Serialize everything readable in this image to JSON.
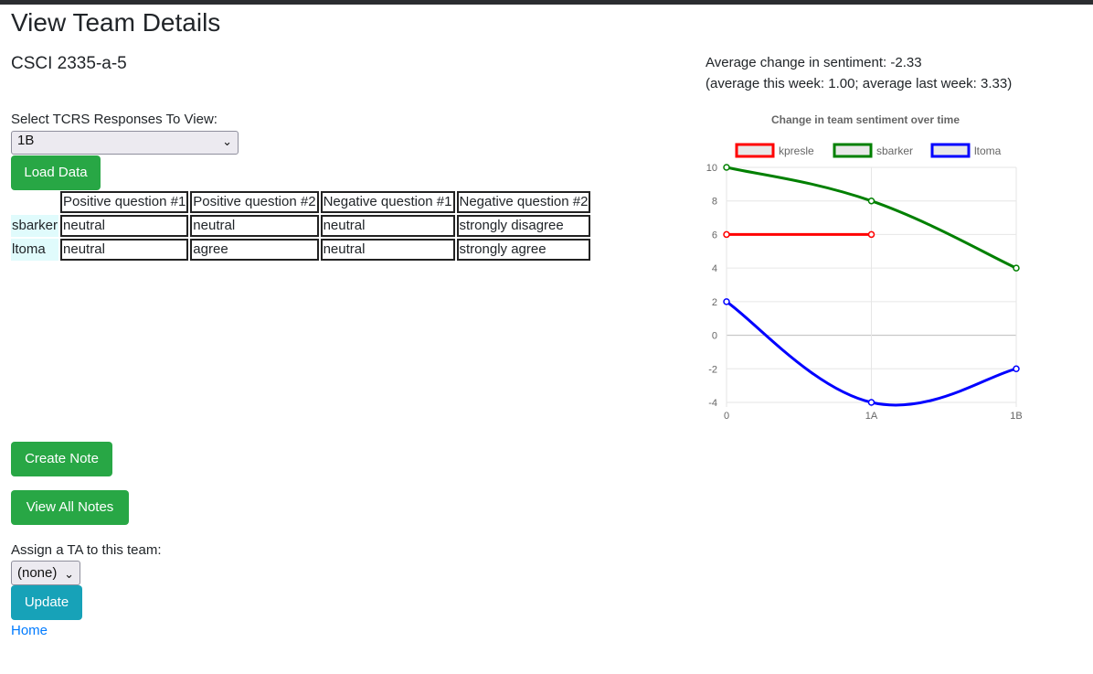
{
  "page_title": "View Team Details",
  "team_name": "CSCI 2335-a-5",
  "tcrs": {
    "label": "Select TCRS Responses To View:",
    "selected": "1B",
    "load_button": "Load Data"
  },
  "responses": {
    "headers": [
      "Positive question #1",
      "Positive question #2",
      "Negative question #1",
      "Negative question #2"
    ],
    "rows": [
      {
        "name": "sbarker",
        "cells": [
          "neutral",
          "neutral",
          "neutral",
          "strongly disagree"
        ]
      },
      {
        "name": "ltoma",
        "cells": [
          "neutral",
          "agree",
          "neutral",
          "strongly agree"
        ]
      }
    ]
  },
  "sentiment": {
    "average_change": "Average change in sentiment: -2.33",
    "detail": "(average this week: 1.00; average last week: 3.33)"
  },
  "chart_data": {
    "type": "line",
    "title": "Change in team sentiment over time",
    "categories": [
      "0",
      "1A",
      "1B"
    ],
    "ylim": [
      -4,
      10
    ],
    "yticks": [
      10,
      8,
      6,
      4,
      2,
      0,
      -2,
      -4
    ],
    "grid": true,
    "legend_position": "top",
    "series": [
      {
        "name": "kpresle",
        "color": "#ff0000",
        "values": [
          6,
          6,
          null
        ]
      },
      {
        "name": "sbarker",
        "color": "#008000",
        "values": [
          10,
          8,
          4
        ]
      },
      {
        "name": "ltoma",
        "color": "#0000ff",
        "values": [
          2,
          -4,
          -2
        ]
      }
    ]
  },
  "buttons": {
    "create_note": "Create Note",
    "view_all_notes": "View All Notes",
    "update": "Update"
  },
  "ta": {
    "label": "Assign a TA to this team:",
    "selected": "(none)"
  },
  "home_link": "Home",
  "colors": {
    "green_button": "#28a745",
    "teal_button": "#17a2b8",
    "link": "#007bff",
    "row_highlight": "#e0fbfc"
  }
}
